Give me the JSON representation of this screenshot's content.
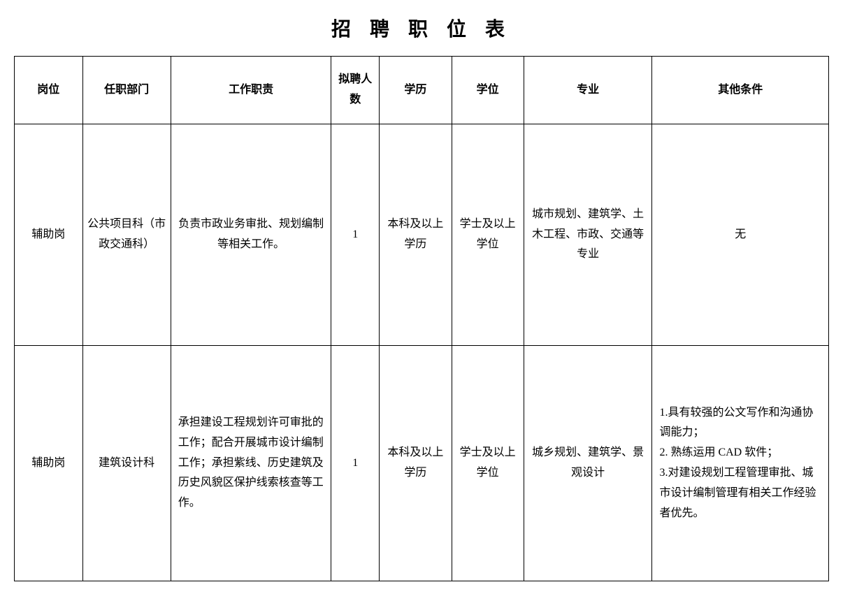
{
  "title": "招 聘 职 位 表",
  "headers": {
    "position": "岗位",
    "department": "任职部门",
    "duty": "工作职责",
    "count": "拟聘人数",
    "education": "学历",
    "degree": "学位",
    "major": "专业",
    "other": "其他条件"
  },
  "rows": [
    {
      "position": "辅助岗",
      "department": "公共项目科（市政交通科）",
      "duty": "负责市政业务审批、规划编制等相关工作。",
      "count": "1",
      "education": "本科及以上学历",
      "degree": "学士及以上学位",
      "major": "城市规划、建筑学、土木工程、市政、交通等专业",
      "other": "无"
    },
    {
      "position": "辅助岗",
      "department": "建筑设计科",
      "duty": "承担建设工程规划许可审批的工作；配合开展城市设计编制工作；承担紫线、历史建筑及历史风貌区保护线索核查等工作。",
      "count": "1",
      "education": "本科及以上学历",
      "degree": "学士及以上学位",
      "major": "城乡规划、建筑学、景观设计",
      "other": "1.具有较强的公文写作和沟通协调能力；\n2. 熟练运用 CAD 软件；\n3.对建设规划工程管理审批、城市设计编制管理有相关工作经验者优先。"
    }
  ]
}
